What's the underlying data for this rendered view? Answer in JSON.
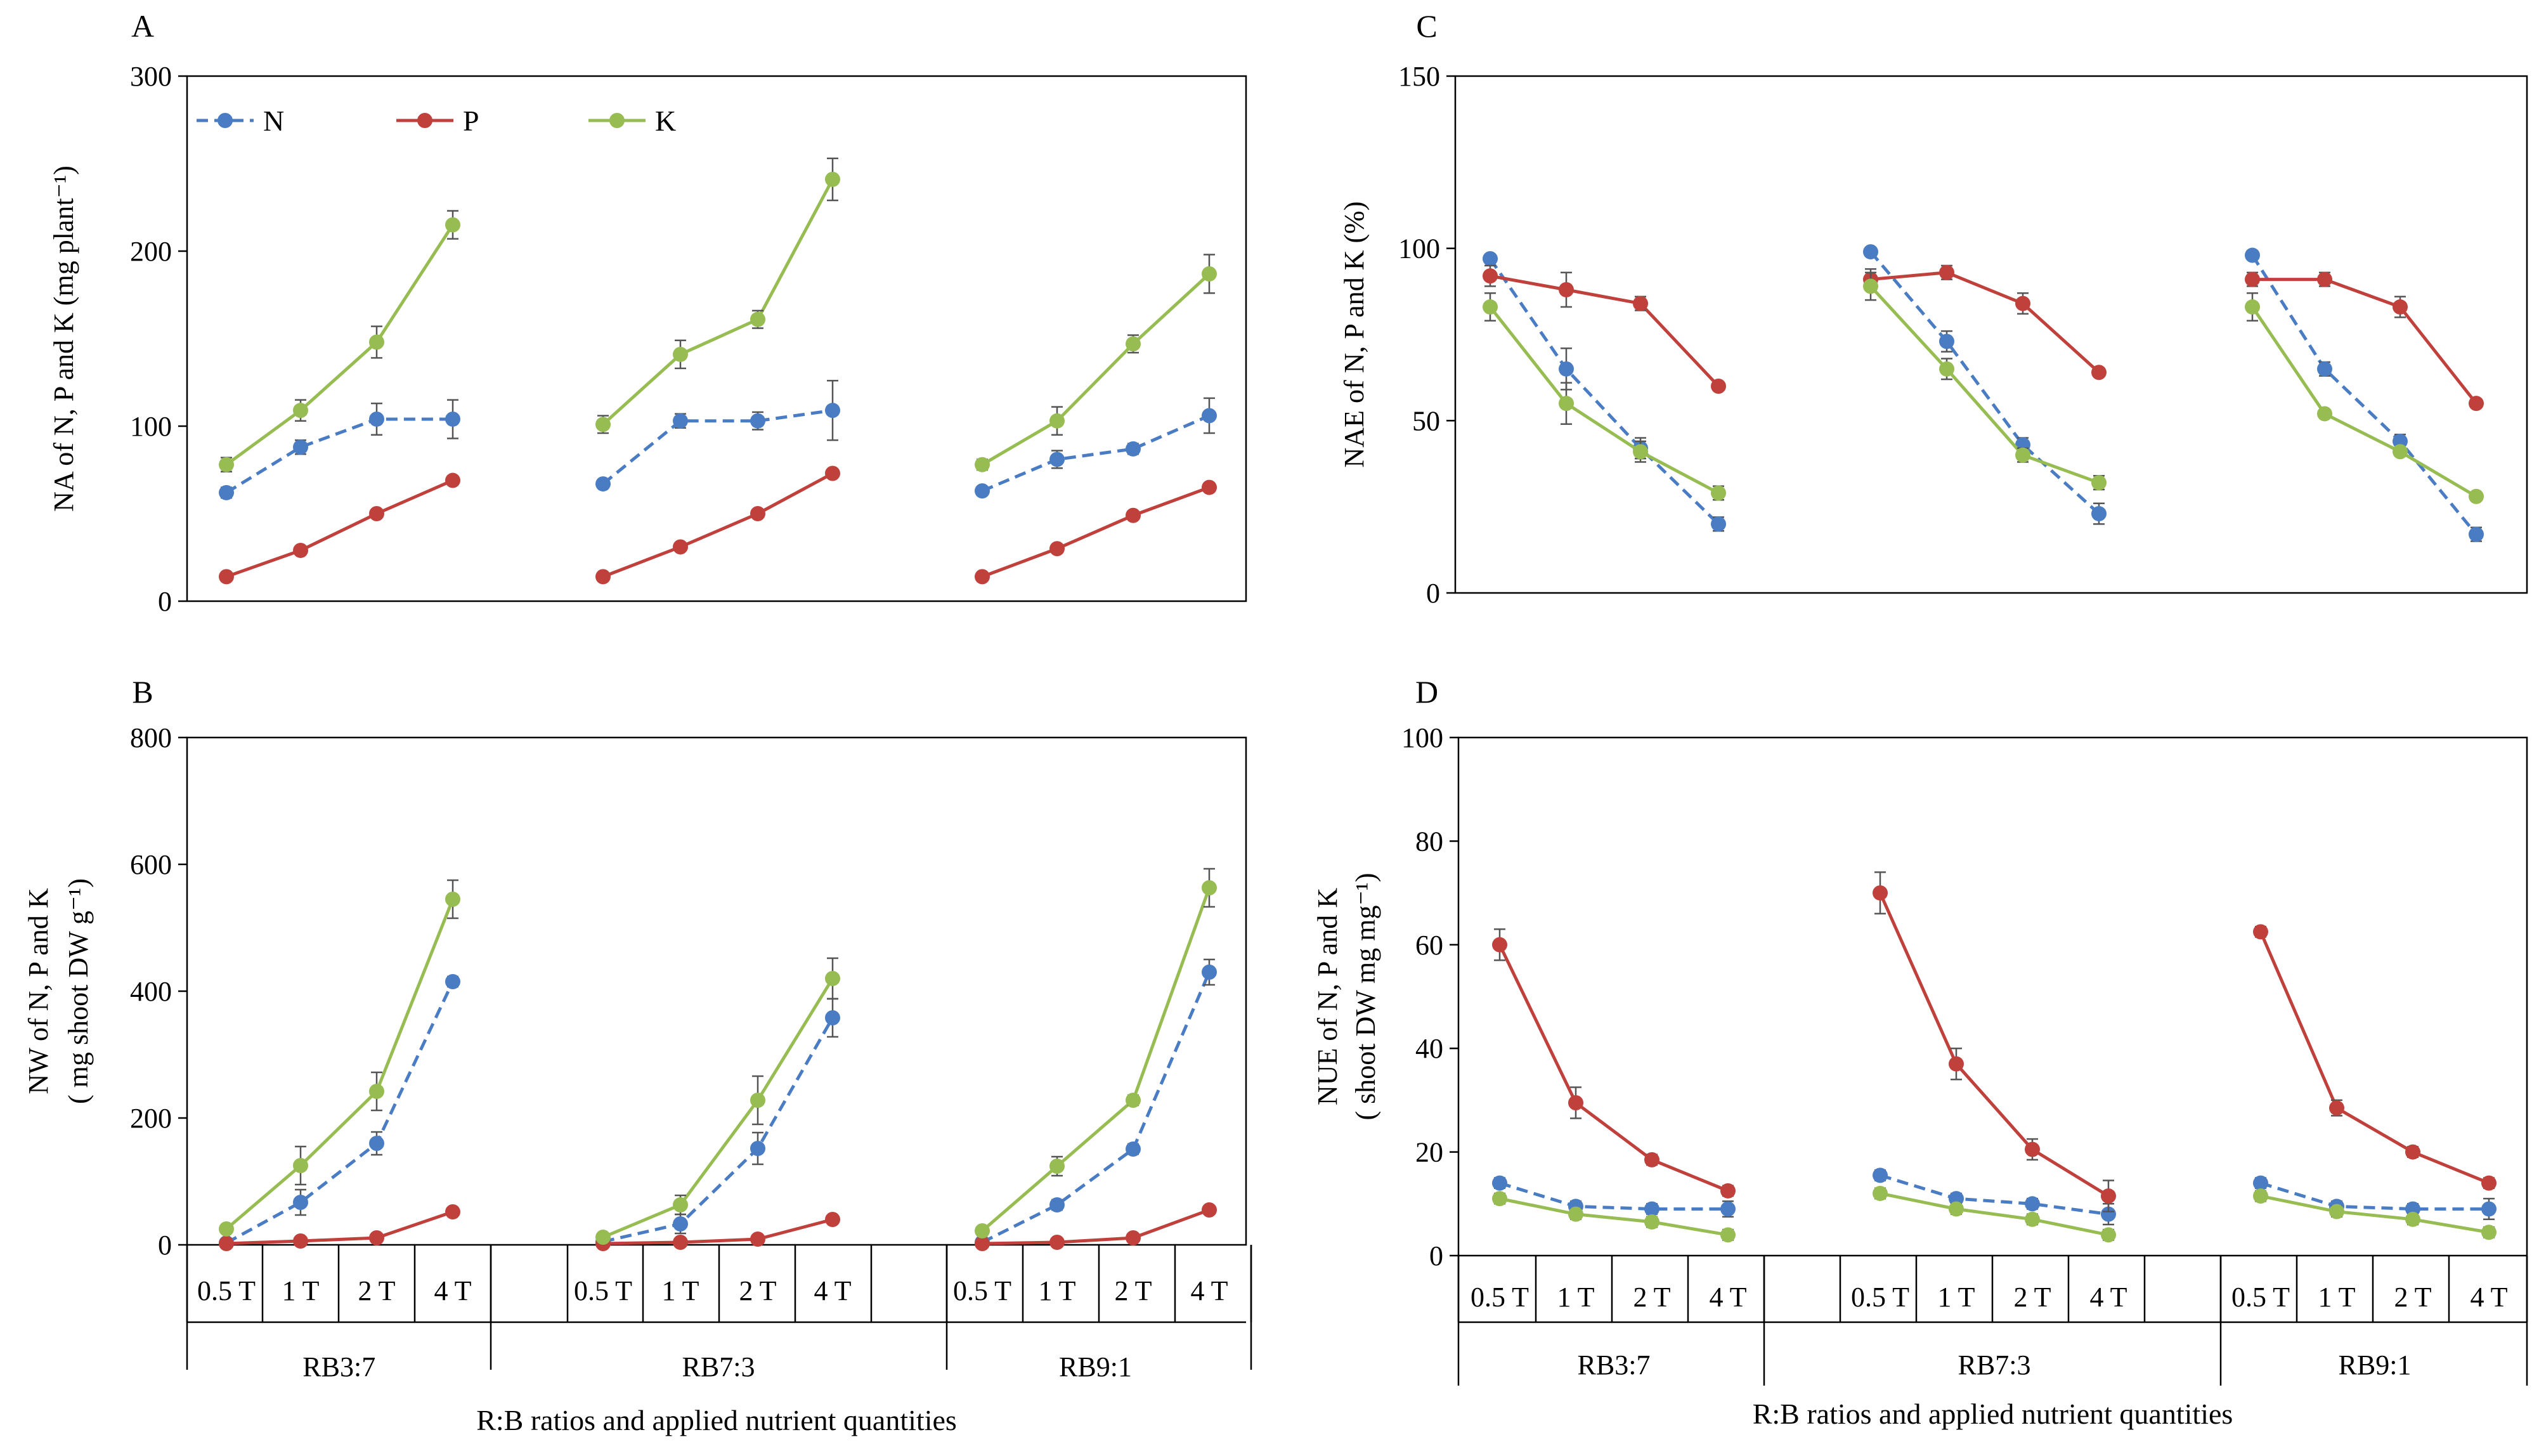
{
  "figure": {
    "xlabel": "R:B ratios and applied nutrient quantities"
  },
  "legend": [
    {
      "name": "N",
      "color": "#4a7cc4",
      "dashed": true
    },
    {
      "name": "P",
      "color": "#c0403c",
      "dashed": false
    },
    {
      "name": "K",
      "color": "#96bc52",
      "dashed": false
    }
  ],
  "categories": [
    "0.5 T",
    "1 T",
    "2 T",
    "4 T"
  ],
  "groups": [
    "RB3:7",
    "RB7:3",
    "RB9:1"
  ],
  "chart_data": [
    {
      "type": "line",
      "panel": "A",
      "title": "",
      "xlabel": "R:B ratios and applied nutrient quantities",
      "ylabel": [
        "NA of  N, P and K (mg plant⁻¹)"
      ],
      "ylim": [
        0,
        300
      ],
      "yticks": [
        0,
        100,
        200,
        300
      ],
      "ytick_labels": [
        "0",
        "100",
        "200",
        "300"
      ],
      "groups": [
        "RB3:7",
        "RB7:3",
        "RB9:1"
      ],
      "categories": [
        "0.5 T",
        "1 T",
        "2 T",
        "4 T"
      ],
      "show_categories": false,
      "series": [
        {
          "name": "N",
          "values": [
            [
              62,
              88,
              104,
              104
            ],
            [
              67,
              103,
              103,
              109
            ],
            [
              63,
              81,
              87,
              106
            ]
          ],
          "errors": [
            [
              3,
              4,
              9,
              11
            ],
            [
              2,
              4,
              5,
              17
            ],
            [
              2,
              5,
              3,
              10
            ]
          ]
        },
        {
          "name": "P",
          "values": [
            [
              14,
              29,
              50,
              69
            ],
            [
              14,
              31,
              50,
              73
            ],
            [
              14,
              30,
              49,
              65
            ]
          ],
          "errors": [
            [
              1,
              1,
              2,
              2
            ],
            [
              1,
              1,
              2,
              2
            ],
            [
              1,
              1,
              2,
              2
            ]
          ]
        },
        {
          "name": "K",
          "values": [
            [
              78,
              109,
              148,
              215
            ],
            [
              101,
              141,
              161,
              241
            ],
            [
              78,
              103,
              147,
              187
            ]
          ],
          "errors": [
            [
              4,
              6,
              9,
              8
            ],
            [
              5,
              8,
              5,
              12
            ],
            [
              3,
              8,
              5,
              11
            ]
          ]
        }
      ]
    },
    {
      "type": "line",
      "panel": "B",
      "title": "",
      "xlabel": "R:B ratios and applied nutrient quantities",
      "ylabel": [
        "NW  of  N, P and K",
        "( mg shoot DW g⁻¹)"
      ],
      "ylim": [
        0,
        800
      ],
      "yticks": [
        0,
        200,
        400,
        600,
        800
      ],
      "ytick_labels": [
        "0",
        "200",
        "400",
        "600",
        "800"
      ],
      "groups": [
        "RB3:7",
        "RB7:3",
        "RB9:1"
      ],
      "categories": [
        "0.5 T",
        "1 T",
        "2 T",
        "4 T"
      ],
      "show_categories": true,
      "series": [
        {
          "name": "N",
          "values": [
            [
              3,
              67,
              160,
              415
            ],
            [
              5,
              33,
              152,
              358
            ],
            [
              4,
              63,
              151,
              430
            ]
          ],
          "errors": [
            [
              2,
              20,
              18,
              8
            ],
            [
              2,
              15,
              25,
              30
            ],
            [
              2,
              8,
              8,
              20
            ]
          ]
        },
        {
          "name": "P",
          "values": [
            [
              2,
              6,
              11,
              52
            ],
            [
              2,
              4,
              9,
              40
            ],
            [
              2,
              4,
              11,
              55
            ]
          ],
          "errors": [
            [
              1,
              1,
              2,
              3
            ],
            [
              1,
              1,
              1,
              3
            ],
            [
              1,
              1,
              2,
              3
            ]
          ]
        },
        {
          "name": "K",
          "values": [
            [
              25,
              125,
              242,
              545
            ],
            [
              12,
              63,
              228,
              420
            ],
            [
              22,
              124,
              228,
              563
            ]
          ],
          "errors": [
            [
              3,
              30,
              30,
              30
            ],
            [
              3,
              15,
              38,
              32
            ],
            [
              3,
              15,
              8,
              30
            ]
          ]
        }
      ]
    },
    {
      "type": "line",
      "panel": "C",
      "title": "",
      "xlabel": "",
      "ylabel": [
        "NAE of  N, P and K (%)"
      ],
      "ylim": [
        0,
        150
      ],
      "yticks": [
        0,
        50,
        100,
        150
      ],
      "ytick_labels": [
        "0",
        "50",
        "100",
        "150"
      ],
      "groups": [
        "RB3:7",
        "RB7:3",
        "RB9:1"
      ],
      "categories": [
        "0.5 T",
        "1 T",
        "2 T",
        "4 T"
      ],
      "show_categories": false,
      "series": [
        {
          "name": "N",
          "values": [
            [
              97,
              65,
              42,
              20
            ],
            [
              99,
              73,
              43,
              23
            ],
            [
              98,
              65,
              44,
              17
            ]
          ],
          "errors": [
            [
              1,
              6,
              3,
              2
            ],
            [
              1,
              3,
              2,
              3
            ],
            [
              1,
              2,
              2,
              2
            ]
          ]
        },
        {
          "name": "P",
          "values": [
            [
              92,
              88,
              84,
              60
            ],
            [
              91,
              93,
              84,
              64
            ],
            [
              91,
              91,
              83,
              55
            ]
          ],
          "errors": [
            [
              3,
              5,
              2,
              1
            ],
            [
              3,
              2,
              3,
              1
            ],
            [
              2,
              2,
              3,
              1
            ]
          ]
        },
        {
          "name": "K",
          "values": [
            [
              83,
              55,
              41,
              29
            ],
            [
              89,
              65,
              40,
              32
            ],
            [
              83,
              52,
              41,
              28
            ]
          ],
          "errors": [
            [
              4,
              6,
              3,
              2
            ],
            [
              4,
              3,
              2,
              2
            ],
            [
              4,
              1,
              1,
              1
            ]
          ]
        }
      ]
    },
    {
      "type": "line",
      "panel": "D",
      "title": "",
      "xlabel": "R:B ratios and applied nutrient quantities",
      "ylabel": [
        "NUE of N, P and K",
        "( shoot DW mg mg⁻¹)"
      ],
      "ylim": [
        0,
        100
      ],
      "yticks": [
        0,
        20,
        40,
        60,
        80,
        100
      ],
      "ytick_labels": [
        "0",
        "20",
        "40",
        "60",
        "80",
        "100"
      ],
      "groups": [
        "RB3:7",
        "RB7:3",
        "RB9:1"
      ],
      "categories": [
        "0.5 T",
        "1 T",
        "2 T",
        "4 T"
      ],
      "show_categories": true,
      "series": [
        {
          "name": "N",
          "values": [
            [
              14,
              9.5,
              9,
              9
            ],
            [
              15.5,
              11,
              10,
              8
            ],
            [
              14,
              9.5,
              9,
              9
            ]
          ],
          "errors": [
            [
              1,
              1,
              1,
              1.5
            ],
            [
              1,
              1,
              1,
              2
            ],
            [
              1,
              1,
              1,
              2
            ]
          ]
        },
        {
          "name": "P",
          "values": [
            [
              60,
              29.5,
              18.5,
              12.5
            ],
            [
              70,
              37,
              20.5,
              11.5
            ],
            [
              62.5,
              28.5,
              20,
              14
            ]
          ],
          "errors": [
            [
              3,
              3,
              1,
              1
            ],
            [
              4,
              3,
              2,
              3
            ],
            [
              1,
              1.5,
              1,
              1
            ]
          ]
        },
        {
          "name": "K",
          "values": [
            [
              11,
              8,
              6.5,
              4
            ],
            [
              12,
              9,
              7,
              4
            ],
            [
              11.5,
              8.5,
              7,
              4.5
            ]
          ],
          "errors": [
            [
              1,
              1,
              1,
              1
            ],
            [
              1,
              1,
              1,
              1
            ],
            [
              1,
              1,
              1,
              1
            ]
          ]
        }
      ]
    }
  ]
}
